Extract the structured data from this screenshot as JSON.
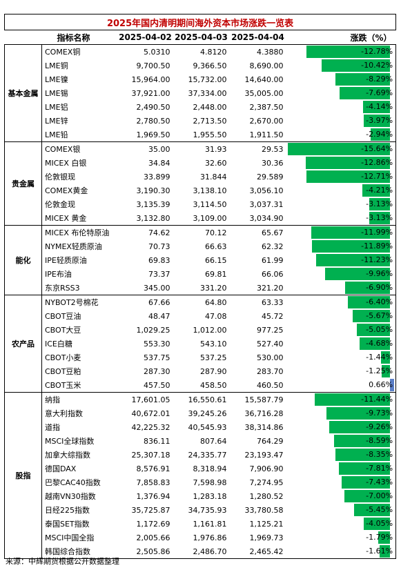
{
  "title": "2025年国内清明期间海外资本市场涨跌一览表",
  "headers": {
    "name": "指标名称",
    "d1": "2025-04-02",
    "d2": "2025-04-03",
    "d3": "2025-04-04",
    "change": "涨跌（%）"
  },
  "source": "来源：中辉期货根据公开数据整理",
  "colors": {
    "neg_bar": "#00b050",
    "pos_bar": "#5b7fc8",
    "title": "#c00000"
  },
  "chart_data": {
    "type": "table",
    "axis_range": [
      -15.64,
      0.66
    ],
    "groups": [
      {
        "category": "基本金属",
        "rows": [
          {
            "name": "COMEX铜",
            "d1": "5.0310",
            "d2": "4.8120",
            "d3": "4.3880",
            "change": -12.78,
            "change_label": "-12.78%"
          },
          {
            "name": "LME铜",
            "d1": "9,700.50",
            "d2": "9,366.50",
            "d3": "8,690.00",
            "change": -10.42,
            "change_label": "-10.42%"
          },
          {
            "name": "LME镍",
            "d1": "15,964.00",
            "d2": "15,732.00",
            "d3": "14,640.00",
            "change": -8.29,
            "change_label": "-8.29%"
          },
          {
            "name": "LME锡",
            "d1": "37,921.00",
            "d2": "37,334.00",
            "d3": "35,005.00",
            "change": -7.69,
            "change_label": "-7.69%"
          },
          {
            "name": "LME铝",
            "d1": "2,490.50",
            "d2": "2,448.00",
            "d3": "2,387.50",
            "change": -4.14,
            "change_label": "-4.14%"
          },
          {
            "name": "LME锌",
            "d1": "2,780.50",
            "d2": "2,713.50",
            "d3": "2,670.00",
            "change": -3.97,
            "change_label": "-3.97%"
          },
          {
            "name": "LME铅",
            "d1": "1,969.50",
            "d2": "1,955.50",
            "d3": "1,911.50",
            "change": -2.94,
            "change_label": "-2.94%"
          }
        ]
      },
      {
        "category": "贵金属",
        "rows": [
          {
            "name": "COMEX银",
            "d1": "35.00",
            "d2": "31.93",
            "d3": "29.53",
            "change": -15.64,
            "change_label": "-15.64%"
          },
          {
            "name": "MICEX 白银",
            "d1": "34.84",
            "d2": "32.60",
            "d3": "30.36",
            "change": -12.86,
            "change_label": "-12.86%"
          },
          {
            "name": "伦敦银现",
            "d1": "33.899",
            "d2": "31.844",
            "d3": "29.589",
            "change": -12.71,
            "change_label": "-12.71%"
          },
          {
            "name": "COMEX黄金",
            "d1": "3,190.30",
            "d2": "3,138.10",
            "d3": "3,056.10",
            "change": -4.21,
            "change_label": "-4.21%"
          },
          {
            "name": "伦敦金现",
            "d1": "3,135.39",
            "d2": "3,114.50",
            "d3": "3,037.31",
            "change": -3.13,
            "change_label": "-3.13%"
          },
          {
            "name": "MICEX 黄金",
            "d1": "3,132.80",
            "d2": "3,109.00",
            "d3": "3,034.90",
            "change": -3.13,
            "change_label": "-3.13%"
          }
        ]
      },
      {
        "category": "能化",
        "rows": [
          {
            "name": "MICEX 布伦特原油",
            "d1": "74.62",
            "d2": "70.12",
            "d3": "65.67",
            "change": -11.99,
            "change_label": "-11.99%"
          },
          {
            "name": "NYMEX轻质原油",
            "d1": "70.73",
            "d2": "66.63",
            "d3": "62.32",
            "change": -11.89,
            "change_label": "-11.89%"
          },
          {
            "name": "IPE轻质原油",
            "d1": "69.83",
            "d2": "66.15",
            "d3": "61.99",
            "change": -11.23,
            "change_label": "-11.23%"
          },
          {
            "name": "IPE布油",
            "d1": "73.37",
            "d2": "69.81",
            "d3": "66.06",
            "change": -9.96,
            "change_label": "-9.96%"
          },
          {
            "name": "东京RSS3",
            "d1": "345.00",
            "d2": "331.20",
            "d3": "321.20",
            "change": -6.9,
            "change_label": "-6.90%"
          }
        ]
      },
      {
        "category": "农产品",
        "rows": [
          {
            "name": "NYBOT2号棉花",
            "d1": "67.66",
            "d2": "64.80",
            "d3": "63.33",
            "change": -6.4,
            "change_label": "-6.40%"
          },
          {
            "name": "CBOT豆油",
            "d1": "48.47",
            "d2": "47.08",
            "d3": "45.72",
            "change": -5.67,
            "change_label": "-5.67%"
          },
          {
            "name": "CBOT大豆",
            "d1": "1,029.25",
            "d2": "1,012.00",
            "d3": "977.25",
            "change": -5.05,
            "change_label": "-5.05%"
          },
          {
            "name": "ICE白糖",
            "d1": "553.30",
            "d2": "543.10",
            "d3": "527.40",
            "change": -4.68,
            "change_label": "-4.68%"
          },
          {
            "name": "CBOT小麦",
            "d1": "537.75",
            "d2": "537.25",
            "d3": "530.00",
            "change": -1.44,
            "change_label": "-1.44%"
          },
          {
            "name": "CBOT豆粕",
            "d1": "287.30",
            "d2": "287.90",
            "d3": "283.70",
            "change": -1.25,
            "change_label": "-1.25%"
          },
          {
            "name": "CBOT玉米",
            "d1": "457.50",
            "d2": "458.50",
            "d3": "460.50",
            "change": 0.66,
            "change_label": "0.66%"
          }
        ]
      },
      {
        "category": "股指",
        "rows": [
          {
            "name": "纳指",
            "d1": "17,601.05",
            "d2": "16,550.61",
            "d3": "15,587.79",
            "change": -11.44,
            "change_label": "-11.44%"
          },
          {
            "name": "意大利指数",
            "d1": "40,672.01",
            "d2": "39,245.26",
            "d3": "36,716.28",
            "change": -9.73,
            "change_label": "-9.73%"
          },
          {
            "name": "道指",
            "d1": "42,225.32",
            "d2": "40,545.93",
            "d3": "38,314.86",
            "change": -9.26,
            "change_label": "-9.26%"
          },
          {
            "name": "MSCI全球指数",
            "d1": "836.11",
            "d2": "807.64",
            "d3": "764.29",
            "change": -8.59,
            "change_label": "-8.59%"
          },
          {
            "name": "加拿大综指数",
            "d1": "25,307.18",
            "d2": "24,335.77",
            "d3": "23,193.47",
            "change": -8.35,
            "change_label": "-8.35%"
          },
          {
            "name": "德国DAX",
            "d1": "8,576.91",
            "d2": "8,318.94",
            "d3": "7,906.90",
            "change": -7.81,
            "change_label": "-7.81%"
          },
          {
            "name": "巴黎CAC40指数",
            "d1": "7,858.83",
            "d2": "7,598.98",
            "d3": "7,274.95",
            "change": -7.43,
            "change_label": "-7.43%"
          },
          {
            "name": "越南VN30指数",
            "d1": "1,376.94",
            "d2": "1,283.18",
            "d3": "1,280.52",
            "change": -7.0,
            "change_label": "-7.00%"
          },
          {
            "name": "日经225指数",
            "d1": "35,725.87",
            "d2": "34,735.93",
            "d3": "33,780.58",
            "change": -5.45,
            "change_label": "-5.45%"
          },
          {
            "name": "泰国SET指数",
            "d1": "1,172.69",
            "d2": "1,161.81",
            "d3": "1,125.21",
            "change": -4.05,
            "change_label": "-4.05%"
          },
          {
            "name": "MSCI中国全指",
            "d1": "2,005.66",
            "d2": "1,976.86",
            "d3": "1,969.73",
            "change": -1.79,
            "change_label": "-1.79%"
          },
          {
            "name": "韩国综合指数",
            "d1": "2,505.86",
            "d2": "2,486.70",
            "d3": "2,465.42",
            "change": -1.61,
            "change_label": "-1.61%"
          }
        ]
      }
    ]
  }
}
